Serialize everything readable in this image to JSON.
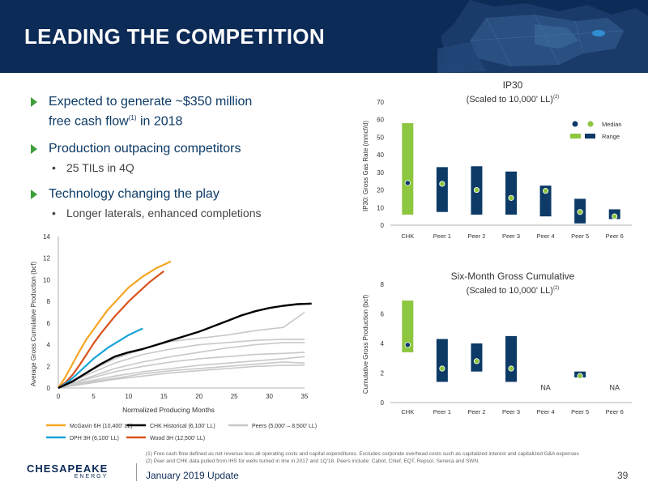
{
  "title": "LEADING THE COMPETITION",
  "bullets": [
    {
      "text_a": "Expected to generate ~$350 million",
      "text_b": "free cash flow",
      "sup": "(1)",
      "text_c": " in 2018",
      "subs": []
    },
    {
      "text": "Production outpacing competitors",
      "subs": [
        "25 TILs in 4Q"
      ]
    },
    {
      "text": "Technology changing the play",
      "subs": [
        "Longer laterals, enhanced completions"
      ]
    }
  ],
  "colors": {
    "navy": "#0d2b57",
    "green": "#8dc63f",
    "bar_navy": "#0d3a66",
    "bullet_green": "#3f9f3a",
    "orange": "#f5a623",
    "red": "#d9531e",
    "cyan": "#1aa3d9",
    "black": "#000000",
    "grey": "#bdbdbd"
  },
  "footnotes": [
    "(1)  Free cash flow defined as net revenue less all operating costs and capital expenditures. Excludes corporate overhead costs such as capitalized interest and capitalized G&A expenses",
    "(2)  Peer and CHK data pulled from IHS for wells turned in line in 2017 and 1Q'18. Peers include: Cabot, Chief, EQT, Repsol, Seneca and SWN."
  ],
  "footer": {
    "logo_top": "CHESAPEAKE",
    "logo_bottom": "ENERGY",
    "date": "January 2019 Update",
    "page": "39"
  },
  "chart_data": [
    {
      "type": "line",
      "title": "",
      "xlabel": "Normalized Producing Months",
      "ylabel": "Average Gross Cumulative Production (bcf)",
      "xlim": [
        0,
        35
      ],
      "ylim": [
        0,
        14
      ],
      "xticks": [
        0,
        5,
        10,
        15,
        20,
        25,
        30,
        35
      ],
      "yticks": [
        0,
        2,
        4,
        6,
        8,
        10,
        12,
        14
      ],
      "legend": [
        {
          "name": "McGavin 6H (10,400' LL)",
          "color": "#f5a623"
        },
        {
          "name": "CHK Historical (6,100' LL)",
          "color": "#000000"
        },
        {
          "name": "Peers (5,000' – 8,500' LL)",
          "color": "#bdbdbd"
        },
        {
          "name": "DPH 3H (6,100' LL)",
          "color": "#1aa3d9"
        },
        {
          "name": "Wood 3H (12,500' LL)",
          "color": "#d9531e"
        }
      ],
      "series": [
        {
          "name": "McGavin 6H (10,400' LL)",
          "color": "#f5a623",
          "width": 2.2,
          "x": [
            0,
            1,
            2,
            3,
            4,
            5,
            6,
            7,
            8,
            9,
            10,
            11,
            12,
            13,
            14,
            15,
            16
          ],
          "y": [
            0,
            1.0,
            2.2,
            3.4,
            4.5,
            5.4,
            6.3,
            7.2,
            7.9,
            8.6,
            9.3,
            9.8,
            10.3,
            10.7,
            11.1,
            11.4,
            11.7
          ]
        },
        {
          "name": "Wood 3H (12,500' LL)",
          "color": "#d9531e",
          "width": 2.2,
          "x": [
            0,
            1,
            2,
            3,
            4,
            5,
            6,
            7,
            8,
            9,
            10,
            11,
            12,
            13,
            14,
            15
          ],
          "y": [
            0,
            0.5,
            1.2,
            2.1,
            3.1,
            4.1,
            5.0,
            5.8,
            6.6,
            7.3,
            8.0,
            8.6,
            9.2,
            9.8,
            10.3,
            10.8
          ]
        },
        {
          "name": "DPH 3H (6,100' LL)",
          "color": "#1aa3d9",
          "width": 2.2,
          "x": [
            0,
            1,
            2,
            3,
            4,
            5,
            6,
            7,
            8,
            9,
            10,
            11,
            12
          ],
          "y": [
            0,
            0.4,
            0.9,
            1.5,
            2.1,
            2.7,
            3.2,
            3.7,
            4.1,
            4.5,
            4.9,
            5.2,
            5.5
          ]
        },
        {
          "name": "CHK Historical (6,100' LL)",
          "color": "#000000",
          "width": 2.4,
          "x": [
            0,
            2,
            4,
            6,
            8,
            10,
            12,
            14,
            16,
            18,
            20,
            22,
            24,
            26,
            28,
            30,
            32,
            34,
            36
          ],
          "y": [
            0,
            0.6,
            1.4,
            2.2,
            2.9,
            3.3,
            3.6,
            4.0,
            4.4,
            4.8,
            5.2,
            5.7,
            6.2,
            6.7,
            7.1,
            7.4,
            7.6,
            7.75,
            7.8
          ]
        },
        {
          "name": "Peers (5,000' – 8,500' LL)",
          "color": "#c8c8c8",
          "width": 1.6,
          "x": [
            0,
            4,
            8,
            12,
            16,
            20,
            24,
            28,
            32,
            35
          ],
          "y": [
            0,
            1.4,
            2.7,
            3.6,
            4.3,
            4.6,
            4.9,
            5.3,
            5.6,
            7.0
          ]
        },
        {
          "name": "Peers (5,000' – 8,500' LL)",
          "color": "#c8c8c8",
          "width": 1.6,
          "x": [
            0,
            4,
            8,
            12,
            16,
            20,
            24,
            28,
            32,
            35
          ],
          "y": [
            0,
            1.2,
            2.3,
            3.1,
            3.6,
            4.0,
            4.2,
            4.4,
            4.5,
            4.5
          ]
        },
        {
          "name": "Peers (5,000' – 8,500' LL)",
          "color": "#c8c8c8",
          "width": 1.6,
          "x": [
            0,
            4,
            8,
            12,
            16,
            20,
            24,
            28,
            32,
            35
          ],
          "y": [
            0,
            0.9,
            1.8,
            2.4,
            2.9,
            3.3,
            3.7,
            4.0,
            4.2,
            4.2
          ]
        },
        {
          "name": "Peers (5,000' – 8,500' LL)",
          "color": "#c8c8c8",
          "width": 1.6,
          "x": [
            0,
            4,
            8,
            12,
            16,
            20,
            24,
            28,
            32,
            35
          ],
          "y": [
            0,
            0.8,
            1.5,
            2.0,
            2.4,
            2.7,
            2.9,
            3.1,
            3.2,
            3.3
          ]
        },
        {
          "name": "Peers (5,000' – 8,500' LL)",
          "color": "#c8c8c8",
          "width": 1.6,
          "x": [
            0,
            4,
            8,
            12,
            16,
            20,
            24,
            28,
            32,
            35
          ],
          "y": [
            0,
            0.6,
            1.1,
            1.5,
            1.8,
            2.1,
            2.3,
            2.5,
            2.7,
            2.9
          ]
        },
        {
          "name": "Peers (5,000' – 8,500' LL)",
          "color": "#c8c8c8",
          "width": 1.6,
          "x": [
            0,
            4,
            8,
            12,
            16,
            20,
            24,
            28,
            32,
            35
          ],
          "y": [
            0,
            0.5,
            0.9,
            1.3,
            1.6,
            1.8,
            2.0,
            2.2,
            2.4,
            2.3
          ]
        },
        {
          "name": "Peers (5,000' – 8,500' LL)",
          "color": "#c8c8c8",
          "width": 1.6,
          "x": [
            0,
            4,
            8,
            12,
            16,
            20,
            24,
            28,
            32,
            35
          ],
          "y": [
            0,
            0.4,
            0.8,
            1.1,
            1.4,
            1.6,
            1.8,
            2.0,
            2.1,
            2.1
          ]
        }
      ]
    },
    {
      "type": "bar",
      "title": "IP30",
      "subtitle": "(Scaled to 10,000' LL)",
      "subtitle_sup": "(2)",
      "ylabel": "IP30: Gross Gas Rate (mmcf/d)",
      "ylim": [
        0,
        70
      ],
      "yticks": [
        0,
        10,
        20,
        30,
        40,
        50,
        60,
        70
      ],
      "categories": [
        "CHK",
        "Peer 1",
        "Peer 2",
        "Peer 3",
        "Peer 4",
        "Peer 5",
        "Peer 6"
      ],
      "range_low": [
        6,
        7.5,
        6,
        6,
        5,
        1,
        3.5
      ],
      "range_high": [
        58,
        33,
        33.5,
        30.5,
        22.5,
        15,
        9
      ],
      "median": [
        24,
        23.5,
        20,
        15.5,
        19.5,
        7.5,
        5
      ],
      "legend": {
        "median": "Median",
        "range": "Range"
      }
    },
    {
      "type": "bar",
      "title": "Six-Month Gross Cumulative",
      "subtitle": "(Scaled to 10,000' LL)",
      "subtitle_sup": "(2)",
      "ylabel": "Cumulative Gross Production (bcf)",
      "ylim": [
        0,
        8
      ],
      "yticks": [
        0,
        2,
        4,
        6,
        8
      ],
      "categories": [
        "CHK",
        "Peer 1",
        "Peer 2",
        "Peer 3",
        "Peer 4",
        "Peer 5",
        "Peer 6"
      ],
      "range_low": [
        3.4,
        1.4,
        2.1,
        1.4,
        null,
        1.7,
        null
      ],
      "range_high": [
        6.9,
        4.3,
        4.0,
        4.5,
        null,
        2.1,
        null
      ],
      "median": [
        3.9,
        2.3,
        2.8,
        2.3,
        null,
        1.8,
        null
      ],
      "na_labels": [
        "",
        "",
        "",
        "",
        "NA",
        "",
        "NA"
      ]
    }
  ]
}
